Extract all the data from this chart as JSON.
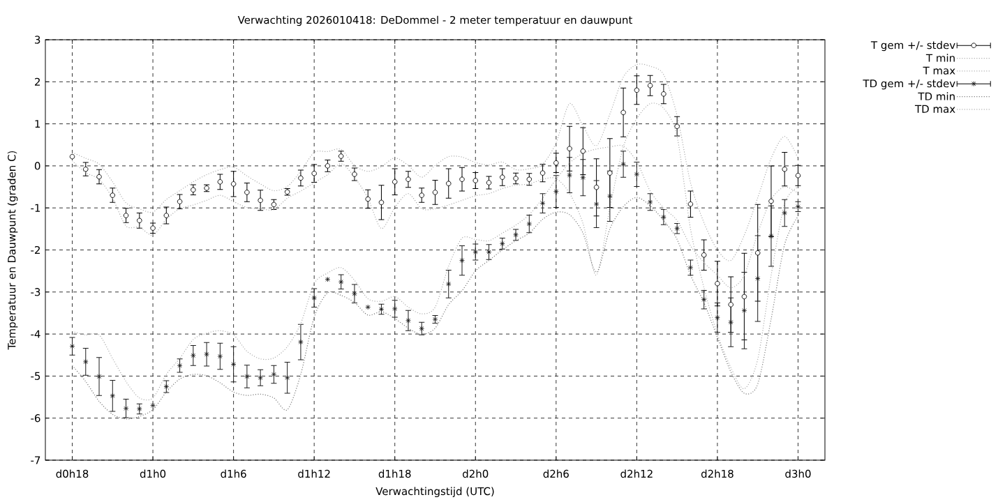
{
  "chart_data": {
    "type": "scatter",
    "title": "Verwachting 2026010418: DeDommel - 2 meter temperatuur en dauwpunt",
    "xlabel": "Verwachtingstijd (UTC)",
    "ylabel": "Temperatuur en Dauwpunt (graden C)",
    "categories": [
      "d0h18",
      null,
      null,
      null,
      null,
      null,
      "d1h0",
      null,
      null,
      null,
      null,
      null,
      "d1h6",
      null,
      null,
      null,
      null,
      null,
      "d1h12",
      null,
      null,
      null,
      null,
      null,
      "d1h18",
      null,
      null,
      null,
      null,
      null,
      "d2h0",
      null,
      null,
      null,
      null,
      null,
      "d2h6",
      null,
      null,
      null,
      null,
      null,
      "d2h12",
      null,
      null,
      null,
      null,
      null,
      "d2h18",
      null,
      null,
      null,
      null,
      null,
      "d3h0"
    ],
    "ylim": [
      -7,
      3
    ],
    "yticks": [
      -7,
      -6,
      -5,
      -4,
      -3,
      -2,
      -1,
      0,
      1,
      2,
      3
    ],
    "grid": true,
    "legend": "top right",
    "series": [
      {
        "name": "T gem +/- stdev",
        "color": "#000000",
        "marker": "circle",
        "values": [
          0.22,
          -0.08,
          -0.26,
          -0.7,
          -1.18,
          -1.3,
          -1.48,
          -1.18,
          -0.85,
          -0.57,
          -0.53,
          -0.38,
          -0.43,
          -0.63,
          -0.82,
          -0.92,
          -0.62,
          -0.29,
          -0.18,
          0.0,
          0.23,
          -0.2,
          -0.79,
          -0.87,
          -0.38,
          -0.32,
          -0.7,
          -0.63,
          -0.42,
          -0.32,
          -0.35,
          -0.4,
          -0.27,
          -0.3,
          -0.32,
          -0.17,
          0.07,
          0.41,
          0.35,
          -0.51,
          -0.17,
          1.27,
          1.8,
          1.91,
          1.71,
          0.94,
          -0.91,
          -2.12,
          -2.8,
          -3.3,
          -3.11,
          -2.07,
          -0.84,
          -0.08,
          -0.23
        ],
        "errors": [
          null,
          0.16,
          0.17,
          0.17,
          0.17,
          0.18,
          0.12,
          0.2,
          0.17,
          0.12,
          0.08,
          0.18,
          0.3,
          0.22,
          0.24,
          0.12,
          0.08,
          0.19,
          0.21,
          0.14,
          0.12,
          0.15,
          0.22,
          0.41,
          0.31,
          0.19,
          0.17,
          0.29,
          0.35,
          0.28,
          0.19,
          0.15,
          0.2,
          0.13,
          0.14,
          0.21,
          0.23,
          0.53,
          0.56,
          0.68,
          0.82,
          0.58,
          0.34,
          0.24,
          0.23,
          0.23,
          0.31,
          0.36,
          0.53,
          0.66,
          1.03,
          1.15,
          0.84,
          0.4,
          0.24
        ]
      },
      {
        "name": "T min",
        "type": "line",
        "color": "#a8a8a8",
        "marker": "none",
        "line_style": "dotted",
        "values": [
          0.12,
          -0.16,
          -0.32,
          -0.77,
          -1.43,
          -1.46,
          -1.65,
          -1.27,
          -1.02,
          -0.93,
          -0.82,
          -0.7,
          -0.85,
          -0.99,
          -1.02,
          -1.04,
          -0.77,
          -0.6,
          -0.4,
          -0.21,
          0.05,
          -0.27,
          -0.77,
          -1.49,
          -0.99,
          -0.66,
          -1.02,
          -1.02,
          -0.93,
          -0.82,
          -0.71,
          -0.66,
          -0.54,
          -0.46,
          -0.43,
          -0.32,
          -0.3,
          -0.65,
          -1.37,
          -2.6,
          -1.0,
          0.45,
          1.12,
          1.48,
          1.37,
          0.7,
          -1.5,
          -2.9,
          -4.0,
          -4.8,
          -5.3,
          -4.6,
          -2.6,
          -0.9,
          -0.5
        ]
      },
      {
        "name": "T max",
        "type": "line",
        "color": "#a8a8a8",
        "marker": "none",
        "line_style": "dotted",
        "values": [
          0.32,
          0.18,
          0.04,
          -0.38,
          -0.88,
          -1.02,
          -1.1,
          -0.8,
          -0.59,
          -0.38,
          -0.21,
          -0.09,
          -0.03,
          -0.24,
          -0.43,
          -0.59,
          -0.49,
          -0.13,
          0.32,
          0.34,
          0.39,
          0.01,
          -0.13,
          -0.02,
          0.19,
          0.01,
          -0.27,
          0.01,
          0.22,
          0.21,
          0.08,
          0.02,
          0.09,
          -0.09,
          -0.07,
          0.04,
          0.55,
          1.48,
          0.95,
          0.48,
          1.23,
          2.11,
          2.41,
          2.37,
          2.17,
          1.2,
          -0.4,
          -1.35,
          -2.0,
          -2.25,
          -1.65,
          -0.76,
          0.18,
          0.7,
          0.18
        ]
      },
      {
        "name": "TD gem +/- stdev",
        "color": "#1c1c1c",
        "marker": "cross",
        "values": [
          -4.29,
          -4.66,
          -5.01,
          -5.47,
          -5.77,
          -5.78,
          -5.7,
          -5.25,
          -4.75,
          -4.51,
          -4.48,
          -4.53,
          -4.72,
          -5.01,
          -5.04,
          -4.96,
          -5.04,
          -4.19,
          -3.14,
          -2.7,
          -2.76,
          -3.04,
          -3.36,
          -3.41,
          -3.4,
          -3.68,
          -3.87,
          -3.65,
          -2.81,
          -2.25,
          -2.05,
          -2.05,
          -1.85,
          -1.64,
          -1.38,
          -0.89,
          -0.61,
          -0.22,
          -0.28,
          -0.91,
          -0.72,
          0.04,
          -0.2,
          -0.86,
          -1.22,
          -1.49,
          -2.42,
          -3.18,
          -3.61,
          -3.72,
          -3.44,
          -2.68,
          -1.67,
          -1.12,
          -0.97
        ],
        "errors": [
          0.21,
          0.32,
          0.45,
          0.37,
          0.22,
          0.12,
          null,
          0.14,
          0.16,
          0.24,
          0.28,
          0.31,
          0.42,
          0.27,
          0.19,
          0.21,
          0.37,
          0.42,
          0.22,
          null,
          0.17,
          0.22,
          null,
          0.12,
          0.2,
          0.24,
          0.15,
          0.09,
          0.33,
          0.35,
          0.19,
          0.18,
          0.13,
          0.13,
          0.21,
          0.23,
          0.38,
          0.42,
          0.43,
          0.56,
          0.6,
          0.31,
          0.29,
          0.2,
          0.18,
          0.12,
          0.18,
          0.22,
          0.35,
          0.58,
          0.91,
          1.02,
          0.72,
          0.32,
          0.12
        ]
      },
      {
        "name": "TD min",
        "type": "line",
        "color": "#707070",
        "marker": "none",
        "line_style": "dotted",
        "values": [
          -4.75,
          -5.13,
          -5.6,
          -5.91,
          -6.02,
          -5.96,
          -5.8,
          -5.38,
          -5.07,
          -4.96,
          -4.99,
          -5.16,
          -5.38,
          -5.46,
          -5.43,
          -5.52,
          -5.8,
          -4.96,
          -3.6,
          -3.02,
          -3.08,
          -3.25,
          -3.55,
          -3.47,
          -3.63,
          -3.86,
          -4.01,
          -3.86,
          -3.3,
          -2.97,
          -2.5,
          -2.25,
          -2.0,
          -1.78,
          -1.6,
          -1.27,
          -1.1,
          -1.16,
          -1.6,
          -2.53,
          -1.5,
          -0.97,
          -0.75,
          -0.95,
          -1.3,
          -1.75,
          -2.6,
          -3.25,
          -4.08,
          -4.9,
          -5.41,
          -5.19,
          -3.64,
          -1.87,
          -1.2
        ]
      },
      {
        "name": "TD max",
        "type": "line",
        "color": "#a8a8a8",
        "marker": "none",
        "line_style": "dotted",
        "values": [
          -3.94,
          -4.02,
          -4.02,
          -4.58,
          -5.13,
          -5.52,
          -5.52,
          -4.96,
          -4.58,
          -4.13,
          -3.98,
          -3.92,
          -4.02,
          -4.41,
          -4.59,
          -4.57,
          -4.3,
          -3.75,
          -2.8,
          -2.55,
          -2.42,
          -2.72,
          -3.16,
          -3.22,
          -3.11,
          -3.36,
          -3.52,
          -3.36,
          -2.39,
          -1.72,
          -1.75,
          -1.78,
          -1.6,
          -1.41,
          -1.16,
          -0.77,
          -0.32,
          0.07,
          0.3,
          0.4,
          0.45,
          0.47,
          0.1,
          -0.6,
          -1.0,
          -1.3,
          -1.9,
          -2.3,
          -2.6,
          -2.9,
          -2.6,
          -1.6,
          -0.8,
          -0.5,
          -0.65
        ]
      }
    ]
  }
}
